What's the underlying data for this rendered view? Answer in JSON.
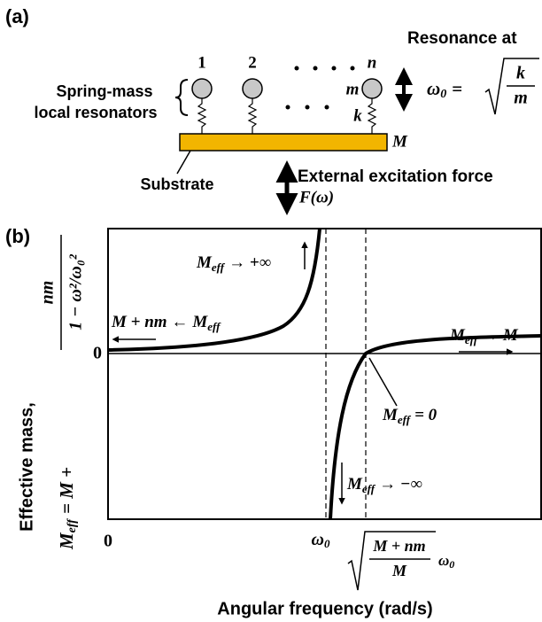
{
  "panel_a": {
    "label": "(a)",
    "resonator_numbers": [
      "1",
      "2",
      "n"
    ],
    "mass_label": "m",
    "spring_label": "k",
    "substrate_mass_label": "M",
    "group_label": [
      "Spring-mass",
      "local resonators"
    ],
    "substrate_label": "Substrate",
    "resonance_title": "Resonance at",
    "resonance_formula": {
      "symbol": "ω",
      "sub": "0",
      "eq": "=",
      "num": "k",
      "den": "m"
    },
    "force_label": "External excitation force",
    "force_symbol": "F(ω)"
  },
  "panel_b": {
    "label": "(b)",
    "y_axis_title": "Effective mass,",
    "y_axis_formula": {
      "symbol": "M",
      "sub": "eff",
      "rhs": "= M +",
      "num": "nm",
      "den": "1 − ω²/ω₀²"
    },
    "y_zero_label": "0",
    "x_zero_label": "0",
    "resonance_tick": {
      "symbol": "ω",
      "sub": "0"
    },
    "zero_crossing_tick": {
      "num": "M + nm",
      "den": "M",
      "symbol": "ω",
      "sub": "0"
    },
    "x_axis_title": "Angular frequency (rad/s)",
    "annotations": {
      "plus_inf": {
        "symbol": "M",
        "sub": "eff",
        "after": "→ +∞"
      },
      "left_limit": {
        "before": "M + nm ←",
        "symbol": "M",
        "sub": "eff"
      },
      "right_limit": {
        "symbol": "M",
        "sub": "eff",
        "after": "→ M"
      },
      "zero": {
        "symbol": "M",
        "sub": "eff",
        "after": "= 0"
      },
      "minus_inf": {
        "symbol": "M",
        "sub": "eff",
        "after": "→ −∞"
      }
    }
  }
}
